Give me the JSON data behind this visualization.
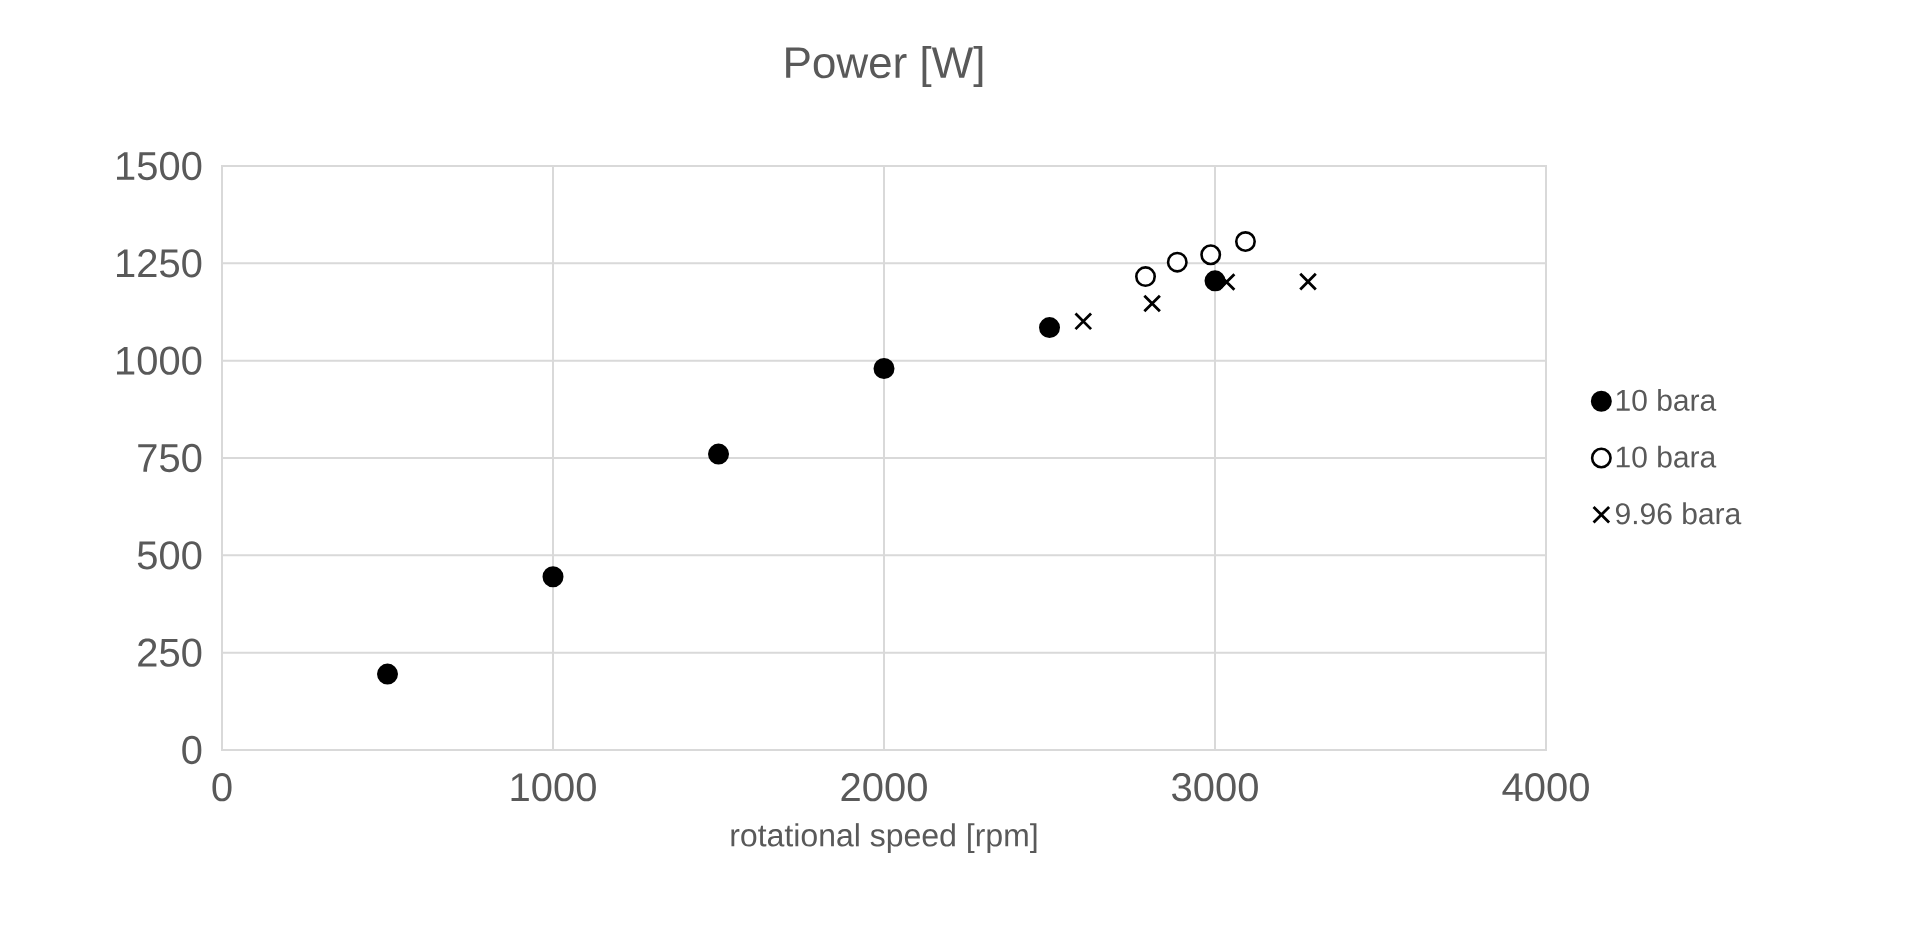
{
  "chart_data": {
    "type": "scatter",
    "title": "Power [W]",
    "xlabel": "rotational speed [rpm]",
    "xlim": [
      0,
      4000
    ],
    "xticks": [
      0,
      1000,
      2000,
      3000,
      4000
    ],
    "ylim": [
      0,
      1500
    ],
    "yticks": [
      0,
      250,
      500,
      750,
      1000,
      1250,
      1500
    ],
    "grid": true,
    "legend": "right",
    "series": [
      {
        "name": "10 bara",
        "color": "#000000",
        "marker": "circle",
        "x": [
          500,
          1000,
          1500,
          2000,
          2500,
          3000
        ],
        "values": [
          195,
          445,
          760,
          980,
          1085,
          1205
        ]
      },
      {
        "name": "10 bara",
        "color": "#ffffff",
        "marker": "circle",
        "x": [
          2790,
          2886,
          2987,
          3092
        ],
        "values": [
          1216,
          1253,
          1272,
          1306
        ]
      },
      {
        "name": "9.96 bara",
        "color": "#000000",
        "marker": "cross",
        "x": [
          2602,
          2810,
          3035,
          3281
        ],
        "values": [
          1101,
          1147,
          1202,
          1203
        ]
      }
    ]
  }
}
